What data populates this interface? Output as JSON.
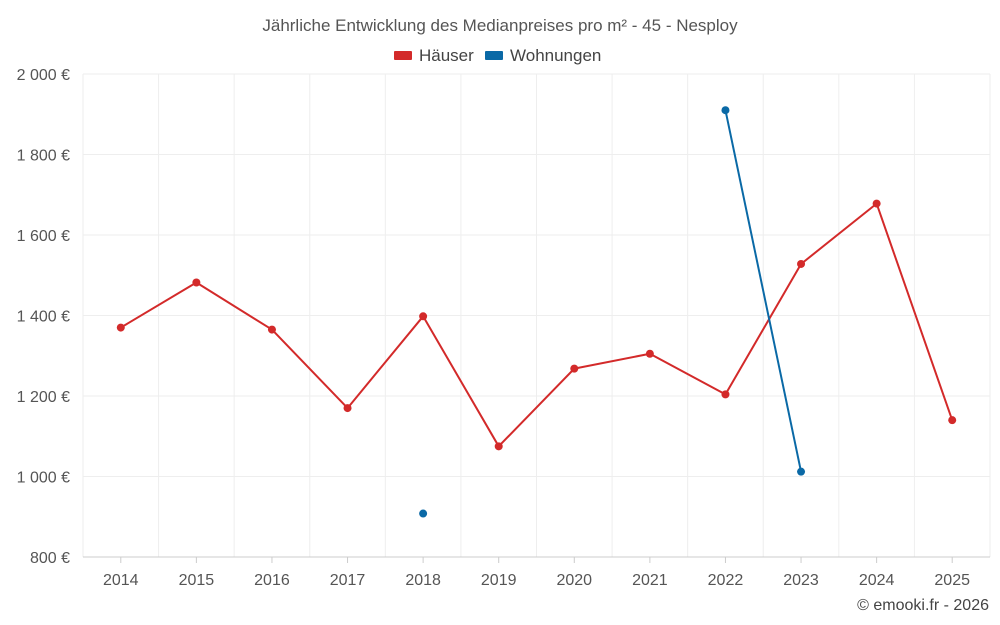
{
  "chart_data": {
    "type": "line",
    "title": "Jährliche Entwicklung des Medianpreises pro m² - 45 - Nesploy",
    "categories": [
      "2014",
      "2015",
      "2016",
      "2017",
      "2018",
      "2019",
      "2020",
      "2021",
      "2022",
      "2023",
      "2024",
      "2025"
    ],
    "ylim": [
      800,
      2000
    ],
    "yticks": [
      800,
      1000,
      1200,
      1400,
      1600,
      1800,
      2000
    ],
    "ytick_labels": [
      "800 €",
      "1 000 €",
      "1 200 €",
      "1 400 €",
      "1 600 €",
      "1 800 €",
      "2 000 €"
    ],
    "grid": true,
    "legend_position": "top-center",
    "series": [
      {
        "name": "Häuser",
        "color": "#d32a2a",
        "values": [
          1370,
          1482,
          1365,
          1170,
          1398,
          1075,
          1268,
          1305,
          1204,
          1528,
          1678,
          1140
        ]
      },
      {
        "name": "Wohnungen",
        "color": "#0a69a6",
        "values": [
          null,
          null,
          null,
          null,
          908,
          null,
          null,
          null,
          1910,
          1012,
          null,
          null
        ]
      }
    ]
  },
  "credit": "© emooki.fr - 2026"
}
